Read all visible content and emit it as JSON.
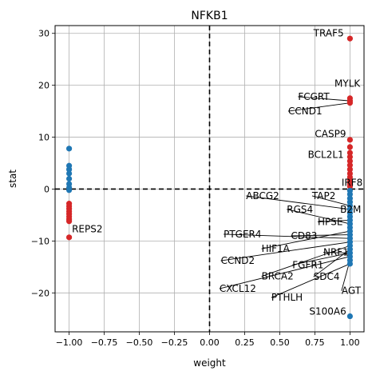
{
  "chart_data": {
    "type": "scatter",
    "title": "NFKB1",
    "xlabel": "weight",
    "ylabel": "stat",
    "xlim": [
      -1.1,
      1.1
    ],
    "ylim": [
      -27.5,
      31.5
    ],
    "grid": true,
    "x_ticks": [
      -1.0,
      -0.75,
      -0.5,
      -0.25,
      0.0,
      0.25,
      0.5,
      0.75,
      1.0
    ],
    "x_tick_labels": [
      "−1.00",
      "−0.75",
      "−0.50",
      "−0.25",
      "0.00",
      "0.25",
      "0.50",
      "0.75",
      "1.00"
    ],
    "y_ticks": [
      -20,
      -10,
      0,
      10,
      20,
      30
    ],
    "y_tick_labels": [
      "−20",
      "−10",
      "0",
      "10",
      "20",
      "30"
    ],
    "colors": {
      "positive": "#d62728",
      "negative": "#1f77b4",
      "reference_line": "#000000",
      "grid": "#b0b0b0"
    },
    "reference_lines": {
      "x": 0,
      "y": 0,
      "style": "dashed"
    },
    "series": [
      {
        "color": "#d62728",
        "points": [
          {
            "x": -1.0,
            "y": -2.8
          },
          {
            "x": -1.0,
            "y": -3.3
          },
          {
            "x": -1.0,
            "y": -3.8
          },
          {
            "x": -1.0,
            "y": -4.3
          },
          {
            "x": -1.0,
            "y": -4.8
          },
          {
            "x": -1.0,
            "y": -5.3
          },
          {
            "x": -1.0,
            "y": -5.8
          },
          {
            "x": -1.0,
            "y": -6.2
          },
          {
            "x": -1.0,
            "y": -9.3
          },
          {
            "x": 1.0,
            "y": 29.0
          },
          {
            "x": 1.0,
            "y": 17.5
          },
          {
            "x": 1.0,
            "y": 17.0
          },
          {
            "x": 1.0,
            "y": 16.6
          },
          {
            "x": 1.0,
            "y": 9.5
          },
          {
            "x": 1.0,
            "y": 8.1
          },
          {
            "x": 1.0,
            "y": 7.0
          },
          {
            "x": 1.0,
            "y": 6.2
          },
          {
            "x": 1.0,
            "y": 5.4
          },
          {
            "x": 1.0,
            "y": 4.6
          },
          {
            "x": 1.0,
            "y": 3.8
          },
          {
            "x": 1.0,
            "y": 3.0
          },
          {
            "x": 1.0,
            "y": 2.3
          },
          {
            "x": 1.0,
            "y": 1.6
          },
          {
            "x": 1.0,
            "y": 1.0
          },
          {
            "x": 1.0,
            "y": 0.5
          }
        ]
      },
      {
        "color": "#1f77b4",
        "points": [
          {
            "x": -1.0,
            "y": 7.8
          },
          {
            "x": -1.0,
            "y": 4.5
          },
          {
            "x": -1.0,
            "y": 3.8
          },
          {
            "x": -1.0,
            "y": 3.0
          },
          {
            "x": -1.0,
            "y": 2.0
          },
          {
            "x": -1.0,
            "y": 1.0
          },
          {
            "x": -1.0,
            "y": 0.3
          },
          {
            "x": -1.0,
            "y": -0.2
          },
          {
            "x": 1.0,
            "y": -0.3
          },
          {
            "x": 1.0,
            "y": -1.0
          },
          {
            "x": 1.0,
            "y": -1.8
          },
          {
            "x": 1.0,
            "y": -2.5
          },
          {
            "x": 1.0,
            "y": -3.2
          },
          {
            "x": 1.0,
            "y": -3.9
          },
          {
            "x": 1.0,
            "y": -4.6
          },
          {
            "x": 1.0,
            "y": -5.3
          },
          {
            "x": 1.0,
            "y": -6.0
          },
          {
            "x": 1.0,
            "y": -6.7
          },
          {
            "x": 1.0,
            "y": -7.4
          },
          {
            "x": 1.0,
            "y": -8.1
          },
          {
            "x": 1.0,
            "y": -8.8
          },
          {
            "x": 1.0,
            "y": -9.5
          },
          {
            "x": 1.0,
            "y": -10.2
          },
          {
            "x": 1.0,
            "y": -10.9
          },
          {
            "x": 1.0,
            "y": -11.6
          },
          {
            "x": 1.0,
            "y": -12.3
          },
          {
            "x": 1.0,
            "y": -13.0
          },
          {
            "x": 1.0,
            "y": -13.7
          },
          {
            "x": 1.0,
            "y": -14.4
          },
          {
            "x": 1.0,
            "y": -24.5
          }
        ]
      }
    ],
    "annotations": [
      {
        "text": "TRAF5",
        "x": 1.0,
        "y": 29.0,
        "text_x": 0.74,
        "text_y": 30.0,
        "arrow": false
      },
      {
        "text": "MYLK",
        "x": 1.0,
        "y": 17.5,
        "text_x": 0.89,
        "text_y": 20.3,
        "arrow": false
      },
      {
        "text": "FCGRT",
        "x": 1.0,
        "y": 17.0,
        "text_x": 0.63,
        "text_y": 17.8,
        "arrow": true
      },
      {
        "text": "CCND1",
        "x": 1.0,
        "y": 16.6,
        "text_x": 0.56,
        "text_y": 15.0,
        "arrow": true
      },
      {
        "text": "CASP9",
        "x": 1.0,
        "y": 9.5,
        "text_x": 0.75,
        "text_y": 10.6,
        "arrow": false
      },
      {
        "text": "BCL2L1",
        "x": 1.0,
        "y": 8.1,
        "text_x": 0.7,
        "text_y": 6.6,
        "arrow": false
      },
      {
        "text": "IRF8",
        "x": 1.0,
        "y": 0.5,
        "text_x": 0.94,
        "text_y": 1.2,
        "arrow": false
      },
      {
        "text": "ABCG2",
        "x": 1.0,
        "y": -3.9,
        "text_x": 0.26,
        "text_y": -1.3,
        "arrow": true
      },
      {
        "text": "TAP2",
        "x": 1.0,
        "y": -3.2,
        "text_x": 0.73,
        "text_y": -1.3,
        "arrow": true
      },
      {
        "text": "RGS4",
        "x": 1.0,
        "y": -6.7,
        "text_x": 0.55,
        "text_y": -3.9,
        "arrow": true
      },
      {
        "text": "B2M",
        "x": 1.0,
        "y": -4.6,
        "text_x": 0.93,
        "text_y": -3.9,
        "arrow": false
      },
      {
        "text": "HPSE",
        "x": 1.0,
        "y": -6.0,
        "text_x": 0.77,
        "text_y": -6.3,
        "arrow": true
      },
      {
        "text": "PTGER4",
        "x": 1.0,
        "y": -9.5,
        "text_x": 0.1,
        "text_y": -8.7,
        "arrow": true
      },
      {
        "text": "CD83",
        "x": 1.0,
        "y": -8.8,
        "text_x": 0.58,
        "text_y": -9.0,
        "arrow": true
      },
      {
        "text": "HIF1A",
        "x": 1.0,
        "y": -8.1,
        "text_x": 0.37,
        "text_y": -11.5,
        "arrow": true
      },
      {
        "text": "NRF1",
        "x": 1.0,
        "y": -12.3,
        "text_x": 0.81,
        "text_y": -12.2,
        "arrow": true
      },
      {
        "text": "CCND2",
        "x": 1.0,
        "y": -10.2,
        "text_x": 0.08,
        "text_y": -13.8,
        "arrow": true
      },
      {
        "text": "FGFR1",
        "x": 1.0,
        "y": -12.3,
        "text_x": 0.59,
        "text_y": -14.6,
        "arrow": true
      },
      {
        "text": "BRCA2",
        "x": 1.0,
        "y": -10.9,
        "text_x": 0.37,
        "text_y": -16.8,
        "arrow": true
      },
      {
        "text": "SDC4",
        "x": 1.0,
        "y": -11.6,
        "text_x": 0.74,
        "text_y": -16.9,
        "arrow": true
      },
      {
        "text": "CXCL12",
        "x": 1.0,
        "y": -13.0,
        "text_x": 0.07,
        "text_y": -19.2,
        "arrow": true
      },
      {
        "text": "AGT",
        "x": 1.0,
        "y": -13.7,
        "text_x": 0.94,
        "text_y": -19.6,
        "arrow": true
      },
      {
        "text": "PTHLH",
        "x": 1.0,
        "y": -14.4,
        "text_x": 0.44,
        "text_y": -20.9,
        "arrow": true
      },
      {
        "text": "S100A6",
        "x": 1.0,
        "y": -24.5,
        "text_x": 0.71,
        "text_y": -23.6,
        "arrow": false
      },
      {
        "text": "REPS2",
        "x": -1.0,
        "y": -9.3,
        "text_x": -0.98,
        "text_y": -7.7,
        "arrow": false
      }
    ]
  }
}
